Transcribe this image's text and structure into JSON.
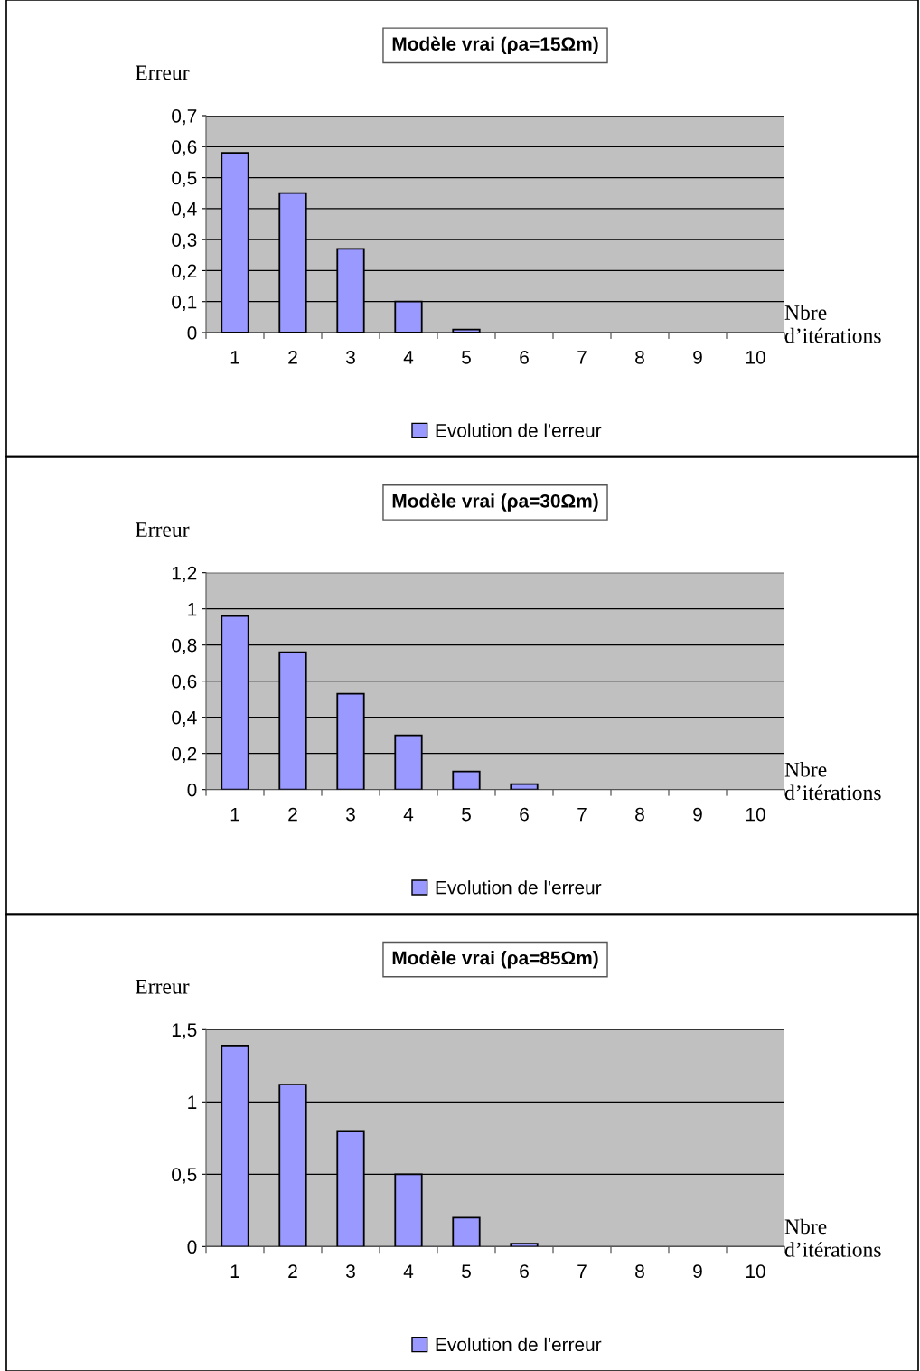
{
  "chart_data": [
    {
      "type": "bar",
      "title": "Modèle vrai (ρa=15Ωm)",
      "ylabel": "Erreur",
      "xlabel": "Nbre\nd’itérations",
      "categories": [
        "1",
        "2",
        "3",
        "4",
        "5",
        "6",
        "7",
        "8",
        "9",
        "10"
      ],
      "series": [
        {
          "name": "Evolution de l'erreur",
          "color": "#9999ff",
          "values": [
            0.58,
            0.45,
            0.27,
            0.1,
            0.01,
            null,
            null,
            null,
            null,
            null
          ]
        }
      ],
      "ylim": [
        0,
        0.7
      ],
      "yticks": [
        {
          "value": 0,
          "label": "0"
        },
        {
          "value": 0.1,
          "label": "0,1"
        },
        {
          "value": 0.2,
          "label": "0,2"
        },
        {
          "value": 0.3,
          "label": "0,3"
        },
        {
          "value": 0.4,
          "label": "0,4"
        },
        {
          "value": 0.5,
          "label": "0,5"
        },
        {
          "value": 0.6,
          "label": "0,6"
        },
        {
          "value": 0.7,
          "label": "0,7"
        }
      ],
      "grid": "y",
      "legend": "bottom"
    },
    {
      "type": "bar",
      "title": "Modèle vrai (ρa=30Ωm)",
      "ylabel": "Erreur",
      "xlabel": "Nbre\nd’itérations",
      "categories": [
        "1",
        "2",
        "3",
        "4",
        "5",
        "6",
        "7",
        "8",
        "9",
        "10"
      ],
      "series": [
        {
          "name": "Evolution de l'erreur",
          "color": "#9999ff",
          "values": [
            0.96,
            0.76,
            0.53,
            0.3,
            0.1,
            0.03,
            null,
            null,
            null,
            null
          ]
        }
      ],
      "ylim": [
        0,
        1.2
      ],
      "yticks": [
        0,
        {
          "value": 0.2,
          "label": "0,2"
        },
        {
          "value": 0.4,
          "label": "0,4"
        },
        {
          "value": 0.6,
          "label": "0,6"
        },
        {
          "value": 0.8,
          "label": "0,8"
        },
        1,
        {
          "value": 1.2,
          "label": "1,2"
        }
      ],
      "grid": "y",
      "legend": "bottom"
    },
    {
      "type": "bar",
      "title": "Modèle vrai (ρa=85Ωm)",
      "ylabel": "Erreur",
      "xlabel": "Nbre\nd’itérations",
      "categories": [
        "1",
        "2",
        "3",
        "4",
        "5",
        "6",
        "7",
        "8",
        "9",
        "10"
      ],
      "series": [
        {
          "name": "Evolution de l'erreur",
          "color": "#9999ff",
          "values": [
            1.39,
            1.12,
            0.8,
            0.5,
            0.2,
            0.02,
            null,
            null,
            null,
            null
          ]
        }
      ],
      "ylim": [
        0,
        1.5
      ],
      "yticks": [
        0,
        {
          "value": 0.5,
          "label": "0,5"
        },
        1,
        {
          "value": 1.5,
          "label": "1,5"
        }
      ],
      "grid": "y",
      "legend": "bottom"
    }
  ]
}
